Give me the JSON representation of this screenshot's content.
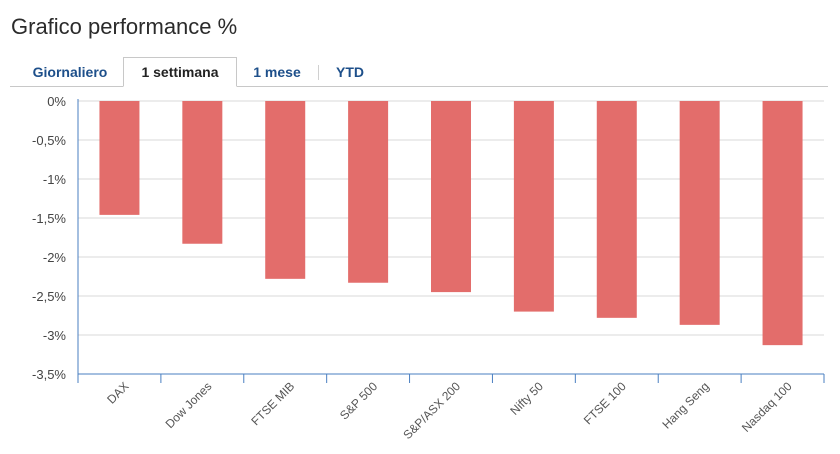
{
  "title": "Grafico performance %",
  "tabs": [
    {
      "label": "Giornaliero",
      "active": false
    },
    {
      "label": "1 settimana",
      "active": true
    },
    {
      "label": "1 mese",
      "active": false
    },
    {
      "label": "YTD",
      "active": false
    }
  ],
  "colors": {
    "bar": "#e36d6b",
    "grid": "#d8d8d8",
    "axis": "#4a7fc1",
    "tab_text": "#1d4f8a"
  },
  "chart_data": {
    "type": "bar",
    "categories": [
      "DAX",
      "Dow Jones",
      "FTSE MIB",
      "S&P 500",
      "S&P/ASX 200",
      "Nifty 50",
      "FTSE 100",
      "Hang Seng",
      "Nasdaq 100"
    ],
    "values": [
      -1.46,
      -1.83,
      -2.28,
      -2.33,
      -2.45,
      -2.7,
      -2.78,
      -2.87,
      -3.13
    ],
    "ylim": [
      -3.5,
      0
    ],
    "yticks": [
      "0%",
      "-0,5%",
      "-1%",
      "-1,5%",
      "-2%",
      "-2,5%",
      "-3%",
      "-3,5%"
    ],
    "grid": true
  }
}
